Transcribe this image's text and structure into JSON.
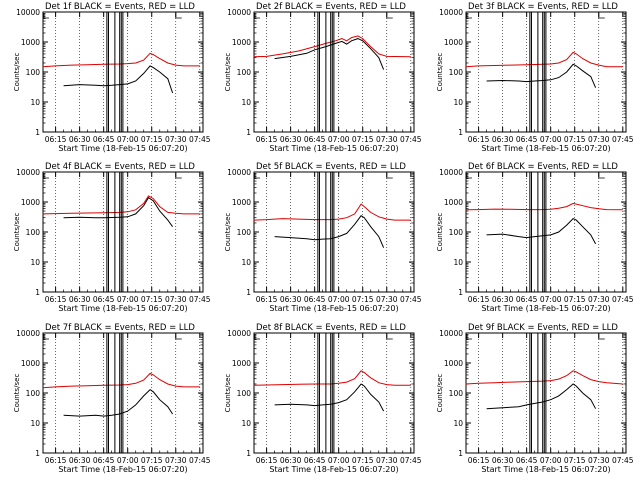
{
  "figure": {
    "grid_rows": 3,
    "grid_cols": 3,
    "y_label": "Counts/sec",
    "x_label": "Start Time (18-Feb-15 06:07:20)"
  },
  "chart_data": [
    {
      "type": "line",
      "title": "Det 1f BLACK = Events, RED = LLD",
      "xlabel": "Start Time (18-Feb-15 06:07:20)",
      "ylabel": "Counts/sec",
      "ylim": [
        1,
        10000
      ],
      "yscale": "log",
      "x_ticks": [
        "06:15",
        "06:30",
        "06:45",
        "07:00",
        "07:15",
        "07:30",
        "07:45"
      ],
      "y_ticks": [
        "1",
        "10",
        "100",
        "1000",
        "10000"
      ],
      "series": [
        {
          "name": "RED = LLD",
          "color": "#e00000",
          "x": [
            "06:07",
            "06:15",
            "06:25",
            "06:35",
            "06:45",
            "06:55",
            "07:00",
            "07:05",
            "07:10",
            "07:14",
            "07:16",
            "07:20",
            "07:25",
            "07:30",
            "07:35",
            "07:45"
          ],
          "y": [
            150,
            160,
            170,
            175,
            180,
            185,
            190,
            200,
            250,
            420,
            380,
            280,
            200,
            170,
            160,
            160
          ]
        },
        {
          "name": "BLACK = Events",
          "color": "#000000",
          "x": [
            "06:20",
            "06:30",
            "06:40",
            "06:45",
            "06:50",
            "06:55",
            "07:00",
            "07:05",
            "07:10",
            "07:14",
            "07:16",
            "07:20",
            "07:25",
            "07:28"
          ],
          "y": [
            35,
            38,
            36,
            35,
            36,
            38,
            40,
            50,
            90,
            160,
            140,
            100,
            60,
            20
          ]
        }
      ],
      "markers": [
        "06:47",
        "06:48",
        "06:52",
        "06:55",
        "06:56",
        "06:57"
      ]
    },
    {
      "type": "line",
      "title": "Det 2f BLACK = Events, RED = LLD",
      "xlabel": "Start Time (18-Feb-15 06:07:20)",
      "ylabel": "Counts/sec",
      "ylim": [
        1,
        10000
      ],
      "yscale": "log",
      "x_ticks": [
        "06:15",
        "06:30",
        "06:45",
        "07:00",
        "07:15",
        "07:30",
        "07:45"
      ],
      "y_ticks": [
        "1",
        "10",
        "100",
        "1000",
        "10000"
      ],
      "series": [
        {
          "name": "RED = LLD",
          "color": "#e00000",
          "x": [
            "06:07",
            "06:15",
            "06:25",
            "06:35",
            "06:45",
            "06:52",
            "06:58",
            "07:02",
            "07:05",
            "07:08",
            "07:12",
            "07:15",
            "07:20",
            "07:25",
            "07:30",
            "07:45"
          ],
          "y": [
            320,
            330,
            400,
            500,
            700,
            900,
            1100,
            1300,
            1100,
            1400,
            1600,
            1300,
            700,
            400,
            330,
            320
          ]
        },
        {
          "name": "BLACK = Events",
          "color": "#000000",
          "x": [
            "06:20",
            "06:30",
            "06:40",
            "06:45",
            "06:52",
            "06:58",
            "07:02",
            "07:05",
            "07:08",
            "07:12",
            "07:15",
            "07:20",
            "07:25",
            "07:28"
          ],
          "y": [
            280,
            330,
            420,
            550,
            700,
            900,
            1050,
            850,
            1100,
            1300,
            1100,
            600,
            300,
            120
          ]
        }
      ],
      "markers": [
        "06:47",
        "06:48",
        "06:52",
        "06:55",
        "06:56",
        "06:57"
      ]
    },
    {
      "type": "line",
      "title": "Det 3f BLACK = Events, RED = LLD",
      "xlabel": "Start Time (18-Feb-15 06:07:20)",
      "ylabel": "Counts/sec",
      "ylim": [
        1,
        10000
      ],
      "yscale": "log",
      "x_ticks": [
        "06:15",
        "06:30",
        "06:45",
        "07:00",
        "07:15",
        "07:30",
        "07:45"
      ],
      "y_ticks": [
        "1",
        "10",
        "100",
        "1000",
        "10000"
      ],
      "series": [
        {
          "name": "RED = LLD",
          "color": "#e00000",
          "x": [
            "06:07",
            "06:15",
            "06:25",
            "06:35",
            "06:45",
            "06:55",
            "07:00",
            "07:05",
            "07:10",
            "07:14",
            "07:16",
            "07:20",
            "07:25",
            "07:30",
            "07:35",
            "07:45"
          ],
          "y": [
            150,
            160,
            165,
            170,
            175,
            180,
            185,
            200,
            260,
            450,
            400,
            280,
            200,
            170,
            150,
            150
          ]
        },
        {
          "name": "BLACK = Events",
          "color": "#000000",
          "x": [
            "06:20",
            "06:30",
            "06:40",
            "06:45",
            "06:50",
            "06:55",
            "07:00",
            "07:05",
            "07:10",
            "07:14",
            "07:16",
            "07:20",
            "07:25",
            "07:28"
          ],
          "y": [
            50,
            52,
            50,
            48,
            50,
            52,
            55,
            65,
            100,
            180,
            160,
            110,
            70,
            30
          ]
        }
      ],
      "markers": [
        "06:47",
        "06:48",
        "06:52",
        "06:55",
        "06:56",
        "06:57"
      ]
    },
    {
      "type": "line",
      "title": "Det 4f BLACK = Events, RED = LLD",
      "xlabel": "Start Time (18-Feb-15 06:07:20)",
      "ylabel": "Counts/sec",
      "ylim": [
        1,
        10000
      ],
      "yscale": "log",
      "x_ticks": [
        "06:15",
        "06:30",
        "06:45",
        "07:00",
        "07:15",
        "07:30",
        "07:45"
      ],
      "y_ticks": [
        "1",
        "10",
        "100",
        "1000",
        "10000"
      ],
      "series": [
        {
          "name": "RED = LLD",
          "color": "#e00000",
          "x": [
            "06:07",
            "06:15",
            "06:25",
            "06:35",
            "06:45",
            "06:55",
            "07:00",
            "07:05",
            "07:10",
            "07:13",
            "07:16",
            "07:20",
            "07:25",
            "07:30",
            "07:35",
            "07:45"
          ],
          "y": [
            400,
            410,
            420,
            430,
            440,
            450,
            470,
            550,
            900,
            1600,
            1300,
            700,
            450,
            420,
            400,
            400
          ]
        },
        {
          "name": "BLACK = Events",
          "color": "#000000",
          "x": [
            "06:20",
            "06:30",
            "06:40",
            "06:45",
            "06:50",
            "06:55",
            "07:00",
            "07:05",
            "07:10",
            "07:13",
            "07:16",
            "07:20",
            "07:25",
            "07:28"
          ],
          "y": [
            300,
            310,
            300,
            300,
            305,
            310,
            320,
            400,
            750,
            1400,
            1100,
            500,
            250,
            150
          ]
        }
      ],
      "markers": [
        "06:47",
        "06:48",
        "06:52",
        "06:55",
        "06:56",
        "06:57"
      ]
    },
    {
      "type": "line",
      "title": "Det 5f BLACK = Events, RED = LLD",
      "xlabel": "Start Time (18-Feb-15 06:07:20)",
      "ylabel": "Counts/sec",
      "ylim": [
        1,
        10000
      ],
      "yscale": "log",
      "x_ticks": [
        "06:15",
        "06:30",
        "06:45",
        "07:00",
        "07:15",
        "07:30",
        "07:45"
      ],
      "y_ticks": [
        "1",
        "10",
        "100",
        "1000",
        "10000"
      ],
      "series": [
        {
          "name": "RED = LLD",
          "color": "#e00000",
          "x": [
            "06:07",
            "06:15",
            "06:25",
            "06:35",
            "06:45",
            "06:55",
            "07:00",
            "07:05",
            "07:10",
            "07:14",
            "07:16",
            "07:20",
            "07:25",
            "07:30",
            "07:35",
            "07:45"
          ],
          "y": [
            250,
            260,
            280,
            270,
            260,
            260,
            270,
            300,
            400,
            850,
            700,
            450,
            320,
            270,
            250,
            250
          ]
        },
        {
          "name": "BLACK = Events",
          "color": "#000000",
          "x": [
            "06:20",
            "06:30",
            "06:40",
            "06:45",
            "06:50",
            "06:55",
            "07:00",
            "07:05",
            "07:10",
            "07:14",
            "07:16",
            "07:20",
            "07:25",
            "07:28"
          ],
          "y": [
            70,
            65,
            60,
            55,
            58,
            60,
            70,
            90,
            180,
            350,
            300,
            150,
            70,
            30
          ]
        }
      ],
      "markers": [
        "06:47",
        "06:48",
        "06:52",
        "06:55",
        "06:56",
        "06:57"
      ]
    },
    {
      "type": "line",
      "title": "Det 6f BLACK = Events, RED = LLD",
      "xlabel": "Start Time (18-Feb-15 06:07:20)",
      "ylabel": "Counts/sec",
      "ylim": [
        1,
        10000
      ],
      "yscale": "log",
      "x_ticks": [
        "06:15",
        "06:30",
        "06:45",
        "07:00",
        "07:15",
        "07:30",
        "07:45"
      ],
      "y_ticks": [
        "1",
        "10",
        "100",
        "1000",
        "10000"
      ],
      "series": [
        {
          "name": "RED = LLD",
          "color": "#e00000",
          "x": [
            "06:07",
            "06:15",
            "06:25",
            "06:35",
            "06:45",
            "06:55",
            "07:00",
            "07:05",
            "07:10",
            "07:14",
            "07:16",
            "07:20",
            "07:25",
            "07:30",
            "07:35",
            "07:45"
          ],
          "y": [
            550,
            560,
            580,
            570,
            560,
            560,
            570,
            620,
            700,
            900,
            850,
            750,
            650,
            600,
            560,
            550
          ]
        },
        {
          "name": "BLACK = Events",
          "color": "#000000",
          "x": [
            "06:20",
            "06:30",
            "06:40",
            "06:45",
            "06:50",
            "06:55",
            "07:00",
            "07:05",
            "07:10",
            "07:14",
            "07:16",
            "07:20",
            "07:25",
            "07:28"
          ],
          "y": [
            80,
            85,
            70,
            65,
            70,
            75,
            80,
            100,
            170,
            280,
            250,
            150,
            80,
            40
          ]
        }
      ],
      "markers": [
        "06:47",
        "06:48",
        "06:52",
        "06:55",
        "06:56",
        "06:57"
      ]
    },
    {
      "type": "line",
      "title": "Det 7f BLACK = Events, RED = LLD",
      "xlabel": "Start Time (18-Feb-15 06:07:20)",
      "ylabel": "Counts/sec",
      "ylim": [
        1,
        10000
      ],
      "yscale": "log",
      "x_ticks": [
        "06:15",
        "06:30",
        "06:45",
        "07:00",
        "07:15",
        "07:30",
        "07:45"
      ],
      "y_ticks": [
        "1",
        "10",
        "100",
        "1000",
        "10000"
      ],
      "series": [
        {
          "name": "RED = LLD",
          "color": "#e00000",
          "x": [
            "06:07",
            "06:15",
            "06:25",
            "06:35",
            "06:45",
            "06:55",
            "07:00",
            "07:05",
            "07:10",
            "07:14",
            "07:16",
            "07:20",
            "07:25",
            "07:30",
            "07:35",
            "07:45"
          ],
          "y": [
            150,
            160,
            170,
            175,
            180,
            185,
            190,
            210,
            270,
            450,
            400,
            280,
            200,
            170,
            160,
            160
          ]
        },
        {
          "name": "BLACK = Events",
          "color": "#000000",
          "x": [
            "06:20",
            "06:30",
            "06:40",
            "06:45",
            "06:50",
            "06:55",
            "07:00",
            "07:05",
            "07:10",
            "07:14",
            "07:16",
            "07:20",
            "07:25",
            "07:28"
          ],
          "y": [
            18,
            17,
            18,
            17,
            18,
            20,
            25,
            40,
            80,
            130,
            110,
            60,
            35,
            20
          ]
        }
      ],
      "markers": [
        "06:47",
        "06:48",
        "06:52",
        "06:55",
        "06:56",
        "06:57"
      ]
    },
    {
      "type": "line",
      "title": "Det 8f BLACK = Events, RED = LLD",
      "xlabel": "Start Time (18-Feb-15 06:07:20)",
      "ylabel": "Counts/sec",
      "ylim": [
        1,
        10000
      ],
      "yscale": "log",
      "x_ticks": [
        "06:15",
        "06:30",
        "06:45",
        "07:00",
        "07:15",
        "07:30",
        "07:45"
      ],
      "y_ticks": [
        "1",
        "10",
        "100",
        "1000",
        "10000"
      ],
      "series": [
        {
          "name": "RED = LLD",
          "color": "#e00000",
          "x": [
            "06:07",
            "06:15",
            "06:25",
            "06:35",
            "06:45",
            "06:55",
            "07:00",
            "07:05",
            "07:10",
            "07:14",
            "07:16",
            "07:20",
            "07:25",
            "07:30",
            "07:35",
            "07:45"
          ],
          "y": [
            180,
            185,
            190,
            195,
            200,
            200,
            210,
            230,
            300,
            550,
            480,
            320,
            220,
            190,
            180,
            180
          ]
        },
        {
          "name": "BLACK = Events",
          "color": "#000000",
          "x": [
            "06:20",
            "06:30",
            "06:40",
            "06:45",
            "06:50",
            "06:55",
            "07:00",
            "07:05",
            "07:10",
            "07:14",
            "07:16",
            "07:20",
            "07:25",
            "07:28"
          ],
          "y": [
            40,
            42,
            40,
            38,
            40,
            42,
            48,
            60,
            110,
            200,
            170,
            90,
            50,
            25
          ]
        }
      ],
      "markers": [
        "06:47",
        "06:48",
        "06:52",
        "06:55",
        "06:56",
        "06:57"
      ]
    },
    {
      "type": "line",
      "title": "Det 9f BLACK = Events, RED = LLD",
      "xlabel": "Start Time (18-Feb-15 06:07:20)",
      "ylabel": "Counts/sec",
      "ylim": [
        1,
        10000
      ],
      "yscale": "log",
      "x_ticks": [
        "06:15",
        "06:30",
        "06:45",
        "07:00",
        "07:15",
        "07:30",
        "07:45"
      ],
      "y_ticks": [
        "1",
        "10",
        "100",
        "1000",
        "10000"
      ],
      "series": [
        {
          "name": "RED = LLD",
          "color": "#e00000",
          "x": [
            "06:07",
            "06:15",
            "06:25",
            "06:35",
            "06:45",
            "06:55",
            "07:00",
            "07:05",
            "07:10",
            "07:14",
            "07:16",
            "07:20",
            "07:25",
            "07:30",
            "07:35",
            "07:45"
          ],
          "y": [
            200,
            210,
            220,
            230,
            240,
            250,
            260,
            290,
            380,
            550,
            500,
            380,
            280,
            240,
            220,
            200
          ]
        },
        {
          "name": "BLACK = Events",
          "color": "#000000",
          "x": [
            "06:20",
            "06:30",
            "06:40",
            "06:45",
            "06:50",
            "06:55",
            "07:00",
            "07:05",
            "07:10",
            "07:14",
            "07:16",
            "07:20",
            "07:25",
            "07:28"
          ],
          "y": [
            30,
            32,
            35,
            40,
            45,
            50,
            60,
            80,
            130,
            200,
            170,
            100,
            60,
            30
          ]
        }
      ],
      "markers": [
        "06:47",
        "06:48",
        "06:52",
        "06:55",
        "06:56",
        "06:57"
      ]
    }
  ]
}
